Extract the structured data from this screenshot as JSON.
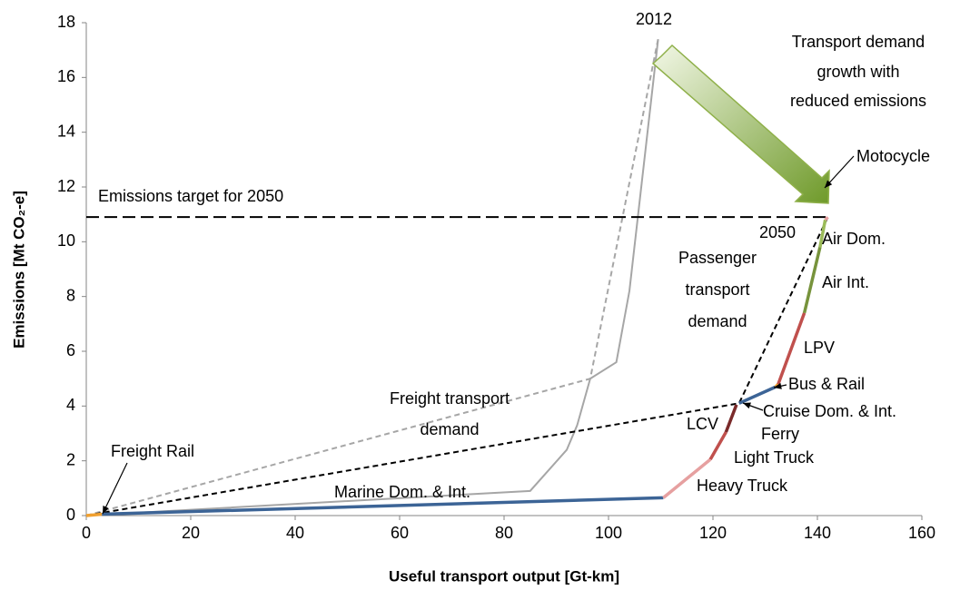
{
  "chart_data": {
    "type": "line",
    "xlabel": "Useful transport output [Gt-km]",
    "ylabel": "Emissions [Mt CO₂-e]",
    "xlim": [
      0,
      160
    ],
    "xticks": [
      0,
      20,
      40,
      60,
      80,
      100,
      120,
      140,
      160
    ],
    "ylim": [
      0,
      18
    ],
    "yticks": [
      0,
      2,
      4,
      6,
      8,
      10,
      12,
      14,
      16,
      18
    ],
    "series": [
      {
        "color": "#a6a6a6",
        "dash": false,
        "x": [
          0,
          85,
          92,
          94,
          96.5,
          101.5,
          104,
          109.5
        ],
        "values": [
          0,
          0.9,
          2.4,
          3.3,
          5.0,
          5.6,
          8.2,
          17.4
        ]
      },
      {
        "color": "#a6a6a6",
        "dash": true,
        "x": [
          0,
          96.5,
          109.5
        ],
        "values": [
          0,
          5.0,
          17.4
        ]
      },
      {
        "color": "#000000",
        "dash": true,
        "x": [
          0,
          125,
          142
        ],
        "values": [
          0,
          4.1,
          10.9
        ]
      },
      {
        "color": "#000000",
        "dash": true,
        "target": true,
        "x": [
          0,
          142
        ],
        "values": [
          10.9,
          10.9
        ]
      },
      {
        "color": "#f0a030",
        "dash": false,
        "x": [
          0,
          3
        ],
        "values": [
          0,
          0.05
        ]
      },
      {
        "color": "#3c6496",
        "dash": false,
        "x": [
          3,
          110.5
        ],
        "values": [
          0.05,
          0.65
        ]
      },
      {
        "color": "#e6a0a0",
        "dash": false,
        "x": [
          110.5,
          119.5
        ],
        "values": [
          0.65,
          2.05
        ]
      },
      {
        "color": "#c0504d",
        "dash": false,
        "x": [
          119.5,
          122.5
        ],
        "values": [
          2.05,
          3.05
        ]
      },
      {
        "color": "#7a2a2a",
        "dash": false,
        "x": [
          122.5,
          124.5
        ],
        "values": [
          3.05,
          4.05
        ]
      },
      {
        "color": "#3c6496",
        "dash": false,
        "x": [
          125,
          132
        ],
        "values": [
          4.1,
          4.7
        ]
      },
      {
        "color": "#f0a030",
        "dash": false,
        "x": [
          132,
          132.5
        ],
        "values": [
          4.7,
          4.8
        ]
      },
      {
        "color": "#c0504d",
        "dash": false,
        "x": [
          132.5,
          137.5
        ],
        "values": [
          4.8,
          7.4
        ]
      },
      {
        "color": "#77933c",
        "dash": false,
        "x": [
          137.5,
          140.5
        ],
        "values": [
          7.4,
          9.8
        ]
      },
      {
        "color": "#9bbb59",
        "dash": false,
        "x": [
          140.5,
          141.5
        ],
        "values": [
          9.8,
          10.8
        ]
      },
      {
        "color": "#e6a0a0",
        "dash": false,
        "x": [
          141.5,
          142
        ],
        "values": [
          10.8,
          10.9
        ]
      }
    ],
    "annotations": [
      "2012",
      "Transport demand",
      "growth with",
      "reduced emissions",
      "Motocycle",
      "Emissions target for 2050",
      "2050",
      "Air Dom.",
      "Passenger",
      "transport",
      "demand",
      "Air Int.",
      "LPV",
      "Bus & Rail",
      "Freight transport",
      "demand",
      "Cruise Dom. & Int.",
      "LCV",
      "Ferry",
      "Light Truck",
      "Heavy Truck",
      "Freight Rail",
      "Marine Dom. & Int."
    ]
  }
}
